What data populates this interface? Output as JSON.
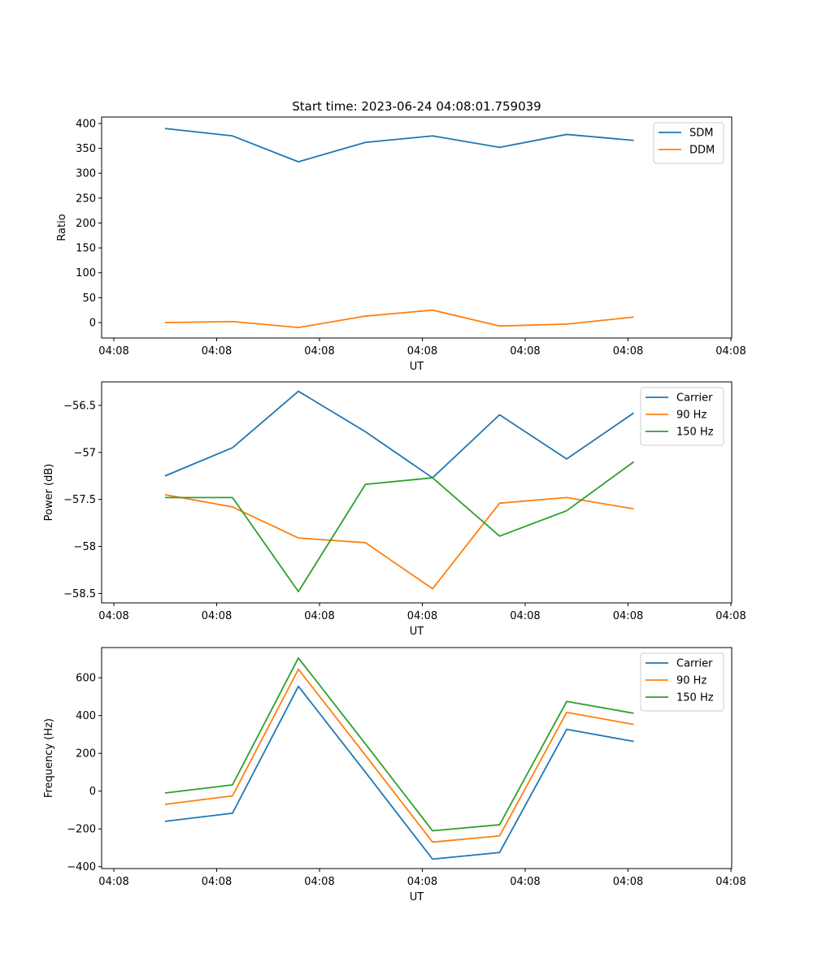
{
  "figure": {
    "title": "Start time: 2023-06-24 04:08:01.759039"
  },
  "chart_data": [
    {
      "type": "line",
      "xlabel": "UT",
      "ylabel": "Ratio",
      "x_tick_labels": [
        "04:08",
        "04:08",
        "04:08",
        "04:08",
        "04:08",
        "04:08",
        "04:08"
      ],
      "ylim": [
        -31,
        413
      ],
      "y_ticks": [
        0,
        50,
        100,
        150,
        200,
        250,
        300,
        350,
        400
      ],
      "legend": "top-right",
      "series": [
        {
          "name": "SDM",
          "color": "#1f77b4",
          "values": [
            390,
            375,
            323,
            362,
            375,
            352,
            378,
            366
          ]
        },
        {
          "name": "DDM",
          "color": "#ff7f0e",
          "values": [
            0,
            2,
            -10,
            13,
            25,
            -7,
            -3,
            11
          ]
        }
      ]
    },
    {
      "type": "line",
      "xlabel": "UT",
      "ylabel": "Power (dB)",
      "x_tick_labels": [
        "04:08",
        "04:08",
        "04:08",
        "04:08",
        "04:08",
        "04:08",
        "04:08"
      ],
      "ylim": [
        -58.6,
        -56.25
      ],
      "y_ticks": [
        -58.5,
        -58.0,
        -57.5,
        -57.0,
        -56.5
      ],
      "legend": "top-right",
      "series": [
        {
          "name": "Carrier",
          "color": "#1f77b4",
          "values": [
            -57.25,
            -56.95,
            -56.35,
            -56.78,
            -57.27,
            -56.6,
            -57.07,
            -56.58
          ]
        },
        {
          "name": "90 Hz",
          "color": "#ff7f0e",
          "values": [
            -57.45,
            -57.58,
            -57.91,
            -57.96,
            -58.45,
            -57.54,
            -57.48,
            -57.6
          ]
        },
        {
          "name": "150 Hz",
          "color": "#2ca02c",
          "values": [
            -57.48,
            -57.48,
            -58.48,
            -57.34,
            -57.27,
            -57.89,
            -57.62,
            -57.1
          ]
        }
      ]
    },
    {
      "type": "line",
      "xlabel": "UT",
      "ylabel": "Frequency (Hz)",
      "x_tick_labels": [
        "04:08",
        "04:08",
        "04:08",
        "04:08",
        "04:08",
        "04:08",
        "04:08"
      ],
      "ylim": [
        -410,
        760
      ],
      "y_ticks": [
        -400,
        -200,
        0,
        200,
        400,
        600
      ],
      "legend": "top-right",
      "series": [
        {
          "name": "Carrier",
          "color": "#1f77b4",
          "values": [
            -160,
            -117,
            555,
            100,
            -360,
            -325,
            327,
            263
          ]
        },
        {
          "name": "90 Hz",
          "color": "#ff7f0e",
          "values": [
            -70,
            -25,
            645,
            190,
            -270,
            -237,
            417,
            353
          ]
        },
        {
          "name": "150 Hz",
          "color": "#2ca02c",
          "values": [
            -10,
            33,
            705,
            250,
            -210,
            -178,
            475,
            412
          ]
        }
      ]
    }
  ]
}
